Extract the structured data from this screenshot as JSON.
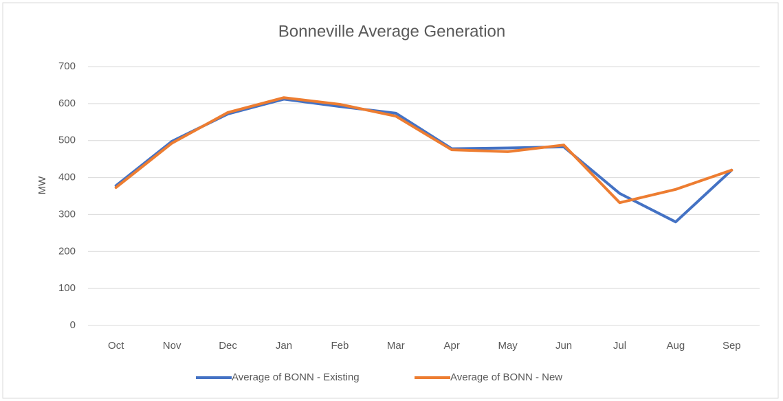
{
  "chart_data": {
    "type": "line",
    "title": "Bonneville Average Generation",
    "y_label": "MW",
    "categories": [
      "Oct",
      "Nov",
      "Dec",
      "Jan",
      "Feb",
      "Mar",
      "Apr",
      "May",
      "Jun",
      "Jul",
      "Aug",
      "Sep"
    ],
    "series": [
      {
        "name": "Average of BONN - Existing",
        "color": "#4472c4",
        "values": [
          378,
          498,
          572,
          612,
          592,
          574,
          478,
          480,
          483,
          357,
          280,
          420
        ]
      },
      {
        "name": "Average of BONN - New",
        "color": "#ed7d31",
        "values": [
          373,
          493,
          576,
          616,
          598,
          566,
          475,
          470,
          488,
          332,
          368,
          420
        ]
      }
    ],
    "ylim": [
      0,
      700
    ],
    "yticks": [
      0,
      100,
      200,
      300,
      400,
      500,
      600,
      700
    ],
    "grid": true,
    "legend": "bottom"
  }
}
